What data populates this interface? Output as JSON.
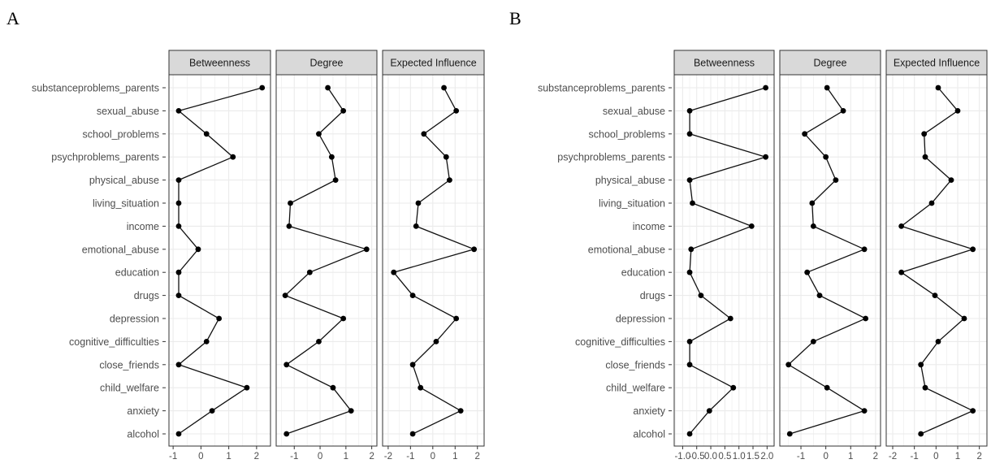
{
  "panel_labels": [
    "A",
    "B"
  ],
  "chart_data": [
    {
      "type": "line",
      "panel": "A",
      "variables": [
        "substanceproblems_parents",
        "sexual_abuse",
        "school_problems",
        "psychproblems_parents",
        "physical_abuse",
        "living_situation",
        "income",
        "emotional_abuse",
        "education",
        "drugs",
        "depression",
        "cognitive_difficulties",
        "close_friends",
        "child_welfare",
        "anxiety",
        "alcohol"
      ],
      "facets": [
        {
          "name": "Betweenness",
          "xlim": [
            -1.15,
            2.5
          ],
          "xticks": [
            -1,
            0,
            1,
            2
          ],
          "values": [
            2.2,
            -0.8,
            0.2,
            1.15,
            -0.8,
            -0.8,
            -0.8,
            -0.1,
            -0.8,
            -0.8,
            0.65,
            0.2,
            -0.8,
            1.65,
            0.4,
            -0.8
          ]
        },
        {
          "name": "Degree",
          "xlim": [
            -1.7,
            2.2
          ],
          "xticks": [
            -1,
            0,
            1,
            2
          ],
          "values": [
            0.3,
            0.9,
            -0.05,
            0.45,
            0.6,
            -1.15,
            -1.2,
            1.8,
            -0.4,
            -1.35,
            0.9,
            -0.05,
            -1.3,
            0.5,
            1.2,
            -1.3
          ]
        },
        {
          "name": "Expected Influence",
          "xlim": [
            -2.25,
            2.3
          ],
          "xticks": [
            -2,
            -1,
            0,
            1,
            2
          ],
          "values": [
            0.5,
            1.05,
            -0.4,
            0.6,
            0.75,
            -0.65,
            -0.75,
            1.85,
            -1.75,
            -0.9,
            1.05,
            0.15,
            -0.9,
            -0.55,
            1.25,
            -0.9
          ]
        }
      ]
    },
    {
      "type": "line",
      "panel": "B",
      "variables": [
        "substanceproblems_parents",
        "sexual_abuse",
        "school_problems",
        "psychproblems_parents",
        "physical_abuse",
        "living_situation",
        "income",
        "emotional_abuse",
        "education",
        "drugs",
        "depression",
        "cognitive_difficulties",
        "close_friends",
        "child_welfare",
        "anxiety",
        "alcohol"
      ],
      "facets": [
        {
          "name": "Betweenness",
          "xlim": [
            -1.3,
            2.25
          ],
          "xticks": [
            -1,
            -0.5,
            0,
            0.5,
            1,
            1.5,
            2
          ],
          "xtick_labels": [
            "-1.0",
            "-0.5",
            "0.0",
            "0.5",
            "1.0",
            "1.5",
            "2.0"
          ],
          "values": [
            1.95,
            -0.75,
            -0.75,
            1.95,
            -0.75,
            -0.65,
            1.45,
            -0.7,
            -0.75,
            -0.35,
            0.7,
            -0.75,
            -0.75,
            0.8,
            -0.05,
            -0.75
          ]
        },
        {
          "name": "Degree",
          "xlim": [
            -1.85,
            2.2
          ],
          "xticks": [
            -1,
            0,
            1,
            2
          ],
          "values": [
            0.05,
            0.7,
            -0.85,
            0.0,
            0.4,
            -0.55,
            -0.5,
            1.55,
            -0.75,
            -0.25,
            1.6,
            -0.5,
            -1.5,
            0.05,
            1.55,
            -1.45
          ]
        },
        {
          "name": "Expected Influence",
          "xlim": [
            -2.3,
            2.35
          ],
          "xticks": [
            -2,
            -1,
            0,
            1,
            2
          ],
          "values": [
            0.1,
            1.0,
            -0.55,
            -0.5,
            0.7,
            -0.2,
            -1.6,
            1.7,
            -1.6,
            -0.05,
            1.3,
            0.1,
            -0.7,
            -0.5,
            1.7,
            -0.7
          ]
        }
      ]
    }
  ]
}
